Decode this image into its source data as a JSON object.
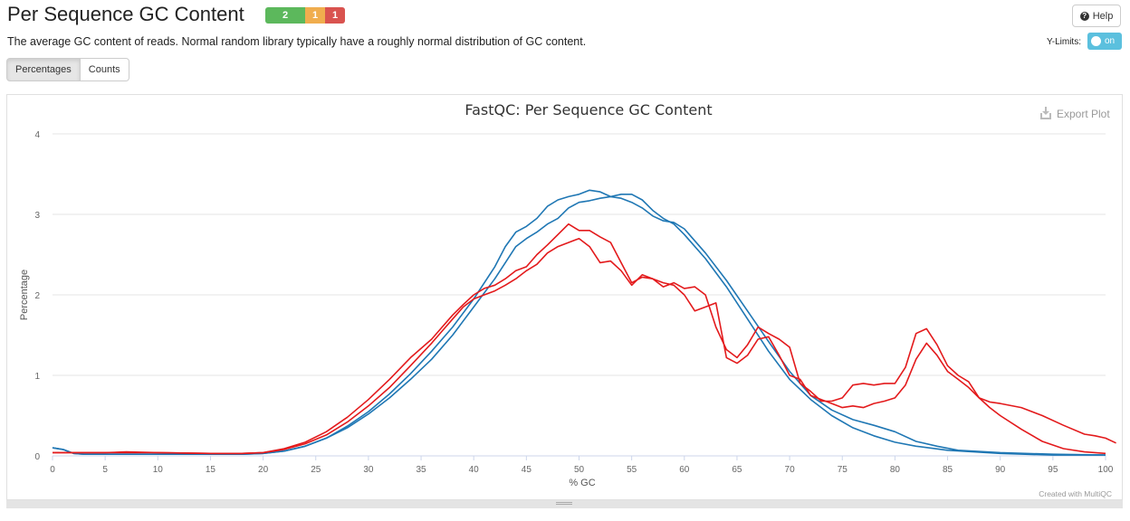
{
  "header": {
    "title": "Per Sequence GC Content",
    "badges": {
      "pass": "2",
      "warn": "1",
      "fail": "1"
    },
    "description": "The average GC content of reads. Normal random library typically have a roughly normal distribution of GC content.",
    "help_label": "Help",
    "ylimits_label": "Y-Limits:",
    "ylimits_toggle": "on"
  },
  "tabs": {
    "percentages": "Percentages",
    "counts": "Counts"
  },
  "plot": {
    "export_label": "Export Plot",
    "credit": "Created with MultiQC"
  },
  "colors": {
    "blue": "#1f77b4",
    "red": "#e31a1c",
    "grid": "#e6e6e6"
  },
  "chart_data": {
    "type": "line",
    "title": "FastQC: Per Sequence GC Content",
    "xlabel": "% GC",
    "ylabel": "Percentage",
    "xlim": [
      0,
      100
    ],
    "ylim": [
      0,
      4
    ],
    "x_ticks": [
      0,
      5,
      10,
      15,
      20,
      25,
      30,
      35,
      40,
      45,
      50,
      55,
      60,
      65,
      70,
      75,
      80,
      85,
      90,
      95,
      100
    ],
    "y_ticks": [
      0,
      1,
      2,
      3,
      4
    ],
    "grid": true,
    "series": [
      {
        "color": "blue",
        "points": [
          [
            0,
            0.1
          ],
          [
            1,
            0.08
          ],
          [
            2,
            0.03
          ],
          [
            3,
            0.02
          ],
          [
            5,
            0.02
          ],
          [
            10,
            0.02
          ],
          [
            15,
            0.02
          ],
          [
            18,
            0.02
          ],
          [
            20,
            0.03
          ],
          [
            22,
            0.06
          ],
          [
            24,
            0.12
          ],
          [
            26,
            0.22
          ],
          [
            28,
            0.35
          ],
          [
            30,
            0.52
          ],
          [
            32,
            0.72
          ],
          [
            34,
            0.95
          ],
          [
            36,
            1.2
          ],
          [
            38,
            1.5
          ],
          [
            40,
            1.85
          ],
          [
            42,
            2.2
          ],
          [
            43,
            2.4
          ],
          [
            44,
            2.6
          ],
          [
            45,
            2.7
          ],
          [
            46,
            2.78
          ],
          [
            47,
            2.88
          ],
          [
            48,
            2.95
          ],
          [
            49,
            3.08
          ],
          [
            50,
            3.15
          ],
          [
            51,
            3.17
          ],
          [
            52,
            3.2
          ],
          [
            53,
            3.22
          ],
          [
            54,
            3.25
          ],
          [
            55,
            3.25
          ],
          [
            56,
            3.18
          ],
          [
            57,
            3.05
          ],
          [
            58,
            2.95
          ],
          [
            59,
            2.88
          ],
          [
            60,
            2.75
          ],
          [
            62,
            2.45
          ],
          [
            64,
            2.1
          ],
          [
            66,
            1.7
          ],
          [
            68,
            1.3
          ],
          [
            70,
            0.95
          ],
          [
            72,
            0.7
          ],
          [
            74,
            0.5
          ],
          [
            76,
            0.35
          ],
          [
            78,
            0.25
          ],
          [
            80,
            0.17
          ],
          [
            82,
            0.12
          ],
          [
            85,
            0.07
          ],
          [
            90,
            0.03
          ],
          [
            95,
            0.01
          ],
          [
            100,
            0.01
          ]
        ]
      },
      {
        "color": "blue",
        "points": [
          [
            0,
            0.1
          ],
          [
            1,
            0.08
          ],
          [
            2,
            0.03
          ],
          [
            3,
            0.02
          ],
          [
            5,
            0.02
          ],
          [
            10,
            0.02
          ],
          [
            15,
            0.02
          ],
          [
            18,
            0.02
          ],
          [
            20,
            0.03
          ],
          [
            22,
            0.06
          ],
          [
            24,
            0.12
          ],
          [
            26,
            0.22
          ],
          [
            28,
            0.37
          ],
          [
            30,
            0.55
          ],
          [
            32,
            0.77
          ],
          [
            34,
            1.02
          ],
          [
            36,
            1.3
          ],
          [
            38,
            1.6
          ],
          [
            40,
            1.95
          ],
          [
            42,
            2.35
          ],
          [
            43,
            2.6
          ],
          [
            44,
            2.78
          ],
          [
            45,
            2.85
          ],
          [
            46,
            2.95
          ],
          [
            47,
            3.1
          ],
          [
            48,
            3.18
          ],
          [
            49,
            3.22
          ],
          [
            50,
            3.25
          ],
          [
            51,
            3.3
          ],
          [
            52,
            3.28
          ],
          [
            53,
            3.22
          ],
          [
            54,
            3.2
          ],
          [
            55,
            3.15
          ],
          [
            56,
            3.08
          ],
          [
            57,
            2.98
          ],
          [
            58,
            2.92
          ],
          [
            59,
            2.9
          ],
          [
            60,
            2.82
          ],
          [
            62,
            2.52
          ],
          [
            64,
            2.18
          ],
          [
            66,
            1.8
          ],
          [
            68,
            1.42
          ],
          [
            70,
            1.05
          ],
          [
            72,
            0.75
          ],
          [
            74,
            0.57
          ],
          [
            76,
            0.45
          ],
          [
            78,
            0.38
          ],
          [
            80,
            0.3
          ],
          [
            82,
            0.18
          ],
          [
            84,
            0.12
          ],
          [
            86,
            0.07
          ],
          [
            90,
            0.04
          ],
          [
            95,
            0.02
          ],
          [
            100,
            0.01
          ]
        ]
      },
      {
        "color": "red",
        "points": [
          [
            0,
            0.04
          ],
          [
            1,
            0.04
          ],
          [
            3,
            0.04
          ],
          [
            5,
            0.04
          ],
          [
            7,
            0.05
          ],
          [
            10,
            0.04
          ],
          [
            15,
            0.03
          ],
          [
            18,
            0.03
          ],
          [
            20,
            0.04
          ],
          [
            22,
            0.08
          ],
          [
            24,
            0.15
          ],
          [
            26,
            0.26
          ],
          [
            28,
            0.42
          ],
          [
            30,
            0.62
          ],
          [
            32,
            0.85
          ],
          [
            34,
            1.12
          ],
          [
            36,
            1.4
          ],
          [
            37,
            1.55
          ],
          [
            38,
            1.7
          ],
          [
            39,
            1.85
          ],
          [
            40,
            1.95
          ],
          [
            41,
            2.0
          ],
          [
            42,
            2.05
          ],
          [
            43,
            2.12
          ],
          [
            44,
            2.2
          ],
          [
            45,
            2.3
          ],
          [
            46,
            2.38
          ],
          [
            47,
            2.52
          ],
          [
            48,
            2.6
          ],
          [
            49,
            2.65
          ],
          [
            50,
            2.7
          ],
          [
            51,
            2.6
          ],
          [
            52,
            2.4
          ],
          [
            53,
            2.42
          ],
          [
            54,
            2.3
          ],
          [
            55,
            2.12
          ],
          [
            56,
            2.25
          ],
          [
            57,
            2.2
          ],
          [
            58,
            2.15
          ],
          [
            59,
            2.12
          ],
          [
            60,
            2.0
          ],
          [
            61,
            1.8
          ],
          [
            62,
            1.85
          ],
          [
            63,
            1.9
          ],
          [
            64,
            1.22
          ],
          [
            65,
            1.15
          ],
          [
            66,
            1.25
          ],
          [
            67,
            1.45
          ],
          [
            68,
            1.48
          ],
          [
            69,
            1.25
          ],
          [
            70,
            1.0
          ],
          [
            71,
            0.95
          ],
          [
            72,
            0.75
          ],
          [
            73,
            0.7
          ],
          [
            74,
            0.65
          ],
          [
            75,
            0.6
          ],
          [
            76,
            0.62
          ],
          [
            77,
            0.6
          ],
          [
            78,
            0.65
          ],
          [
            79,
            0.68
          ],
          [
            80,
            0.72
          ],
          [
            81,
            0.88
          ],
          [
            82,
            1.2
          ],
          [
            83,
            1.4
          ],
          [
            84,
            1.25
          ],
          [
            85,
            1.05
          ],
          [
            86,
            0.95
          ],
          [
            87,
            0.85
          ],
          [
            88,
            0.72
          ],
          [
            89,
            0.6
          ],
          [
            90,
            0.5
          ],
          [
            92,
            0.33
          ],
          [
            94,
            0.18
          ],
          [
            96,
            0.09
          ],
          [
            98,
            0.05
          ],
          [
            100,
            0.03
          ]
        ]
      },
      {
        "color": "red",
        "points": [
          [
            0,
            0.04
          ],
          [
            1,
            0.04
          ],
          [
            3,
            0.04
          ],
          [
            5,
            0.04
          ],
          [
            7,
            0.04
          ],
          [
            10,
            0.04
          ],
          [
            15,
            0.03
          ],
          [
            18,
            0.03
          ],
          [
            20,
            0.04
          ],
          [
            22,
            0.09
          ],
          [
            24,
            0.17
          ],
          [
            26,
            0.3
          ],
          [
            28,
            0.48
          ],
          [
            30,
            0.7
          ],
          [
            32,
            0.95
          ],
          [
            34,
            1.22
          ],
          [
            36,
            1.45
          ],
          [
            37,
            1.6
          ],
          [
            38,
            1.75
          ],
          [
            39,
            1.88
          ],
          [
            40,
            2.0
          ],
          [
            41,
            2.08
          ],
          [
            42,
            2.12
          ],
          [
            43,
            2.2
          ],
          [
            44,
            2.3
          ],
          [
            45,
            2.35
          ],
          [
            46,
            2.5
          ],
          [
            47,
            2.62
          ],
          [
            48,
            2.75
          ],
          [
            49,
            2.88
          ],
          [
            50,
            2.8
          ],
          [
            51,
            2.8
          ],
          [
            52,
            2.72
          ],
          [
            53,
            2.65
          ],
          [
            54,
            2.4
          ],
          [
            55,
            2.15
          ],
          [
            56,
            2.22
          ],
          [
            57,
            2.2
          ],
          [
            58,
            2.1
          ],
          [
            59,
            2.15
          ],
          [
            60,
            2.08
          ],
          [
            61,
            2.1
          ],
          [
            62,
            2.0
          ],
          [
            63,
            1.6
          ],
          [
            64,
            1.32
          ],
          [
            65,
            1.22
          ],
          [
            66,
            1.38
          ],
          [
            67,
            1.6
          ],
          [
            68,
            1.52
          ],
          [
            69,
            1.45
          ],
          [
            70,
            1.35
          ],
          [
            71,
            0.9
          ],
          [
            72,
            0.8
          ],
          [
            73,
            0.68
          ],
          [
            74,
            0.68
          ],
          [
            75,
            0.72
          ],
          [
            76,
            0.88
          ],
          [
            77,
            0.9
          ],
          [
            78,
            0.88
          ],
          [
            79,
            0.9
          ],
          [
            80,
            0.9
          ],
          [
            81,
            1.1
          ],
          [
            82,
            1.52
          ],
          [
            83,
            1.58
          ],
          [
            84,
            1.38
          ],
          [
            85,
            1.12
          ],
          [
            86,
            1.0
          ],
          [
            87,
            0.92
          ],
          [
            88,
            0.72
          ],
          [
            89,
            0.67
          ],
          [
            90,
            0.65
          ],
          [
            92,
            0.6
          ],
          [
            94,
            0.5
          ],
          [
            96,
            0.38
          ],
          [
            98,
            0.27
          ],
          [
            99,
            0.25
          ],
          [
            100,
            0.22
          ],
          [
            101,
            0.16
          ]
        ]
      }
    ]
  }
}
